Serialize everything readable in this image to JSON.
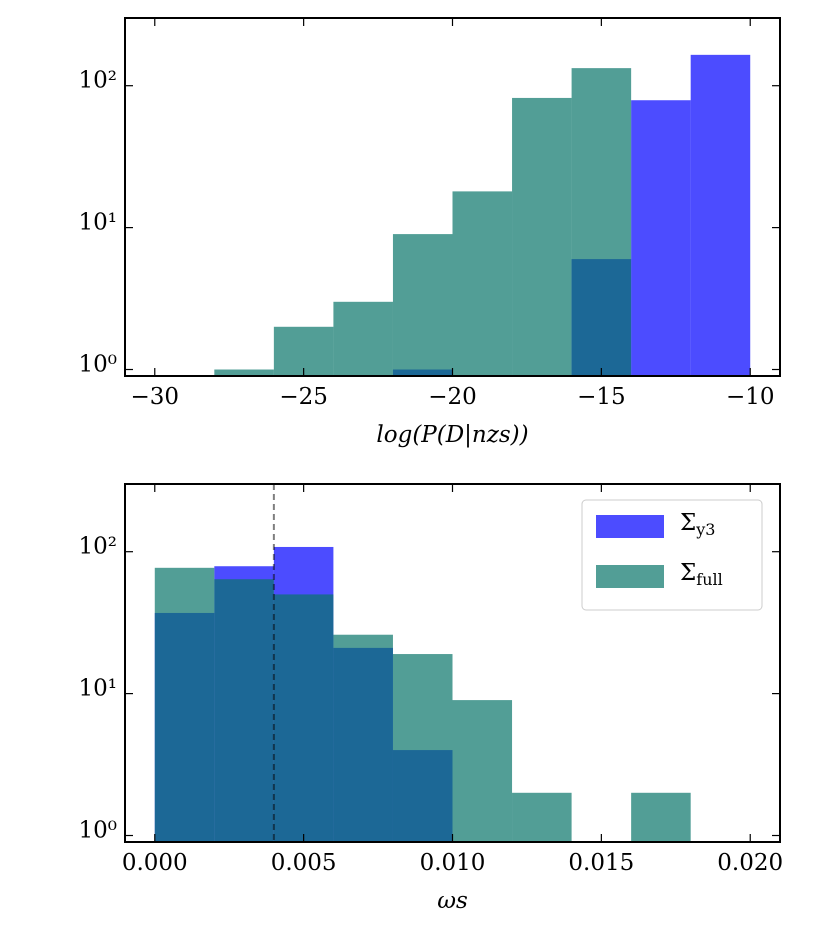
{
  "chart_data": [
    {
      "type": "histogram",
      "xlabel": "log(P(D|nzs))",
      "bins": [
        -30,
        -28,
        -26,
        -24,
        -22,
        -20,
        -18,
        -16,
        -14,
        -12,
        -10
      ],
      "series": [
        {
          "name": "Σy3",
          "color": "#0000ff",
          "values": [
            0,
            0,
            0,
            0,
            1,
            0,
            0,
            6,
            79,
            165
          ]
        },
        {
          "name": "Σfull",
          "color": "#087569",
          "values": [
            0,
            1,
            2,
            3,
            9,
            18,
            82,
            133,
            0,
            0
          ]
        }
      ],
      "xlim": [
        -31,
        -9
      ],
      "ylim": [
        0.9,
        300
      ],
      "yscale": "log",
      "xticks": [
        {
          "value": -30,
          "label": "−30"
        },
        {
          "value": -25,
          "label": "−25"
        },
        {
          "value": -20,
          "label": "−20"
        },
        {
          "value": -15,
          "label": "−15"
        },
        {
          "value": -10,
          "label": "−10"
        }
      ],
      "yticks": [
        {
          "value": 1,
          "label": "10⁰"
        },
        {
          "value": 10,
          "label": "10¹"
        },
        {
          "value": 100,
          "label": "10²"
        }
      ]
    },
    {
      "type": "histogram",
      "xlabel": "ωs",
      "bins": [
        0,
        0.002,
        0.004,
        0.006,
        0.008,
        0.01,
        0.012,
        0.014,
        0.016,
        0.018,
        0.02
      ],
      "series": [
        {
          "name": "Σy3",
          "color": "#0000ff",
          "values": [
            37,
            79,
            108,
            21,
            4,
            0,
            0,
            0,
            0,
            0
          ]
        },
        {
          "name": "Σfull",
          "color": "#087569",
          "values": [
            77,
            64,
            50,
            26,
            19,
            9,
            2,
            0,
            2,
            0
          ]
        }
      ],
      "xlim": [
        -0.001,
        0.021
      ],
      "ylim": [
        0.9,
        300
      ],
      "yscale": "log",
      "xticks": [
        {
          "value": 0,
          "label": "0.000"
        },
        {
          "value": 0.005,
          "label": "0.005"
        },
        {
          "value": 0.01,
          "label": "0.010"
        },
        {
          "value": 0.015,
          "label": "0.015"
        },
        {
          "value": 0.02,
          "label": "0.020"
        }
      ],
      "yticks": [
        {
          "value": 1,
          "label": "10⁰"
        },
        {
          "value": 10,
          "label": "10¹"
        },
        {
          "value": 100,
          "label": "10²"
        }
      ],
      "vlines": [
        0.004
      ],
      "legend": "upper right"
    }
  ]
}
